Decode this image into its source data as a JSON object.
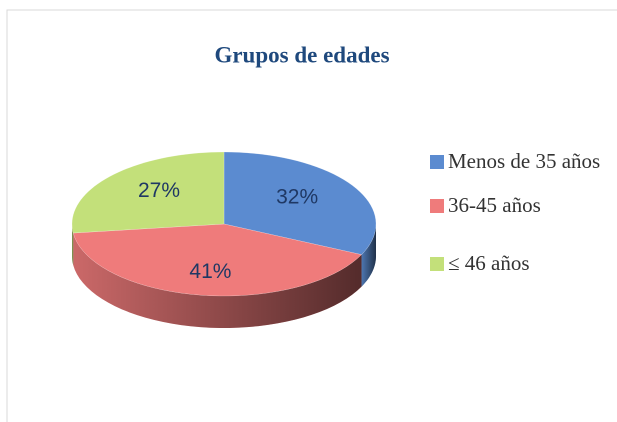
{
  "chart_data": {
    "type": "pie",
    "title": "Grupos de edades",
    "categories": [
      "Menos de 35 años",
      "36-45 años",
      "≤ 46 años"
    ],
    "values": [
      32,
      41,
      27
    ],
    "value_labels": [
      "32%",
      "41%",
      "27%"
    ],
    "colors": [
      "#5b8bd0",
      "#ef7b7b",
      "#c3e07a"
    ],
    "legend": "right"
  }
}
